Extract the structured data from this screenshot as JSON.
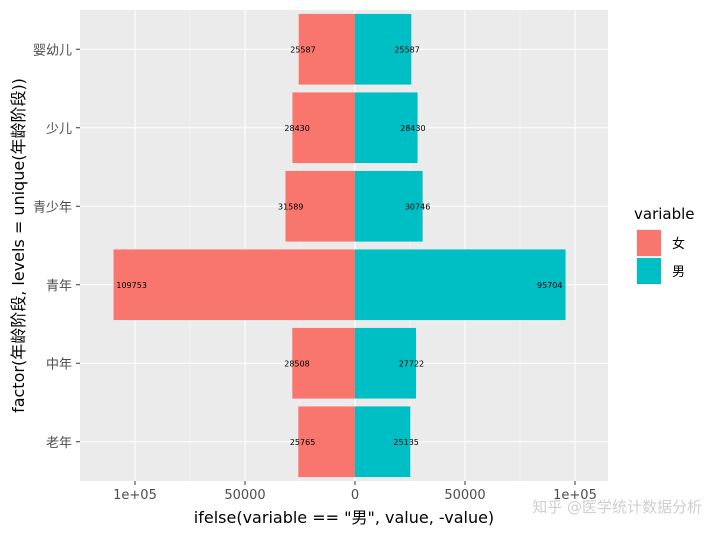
{
  "chart_data": {
    "type": "bar",
    "orientation": "horizontal",
    "categories": [
      "婴幼儿",
      "少儿",
      "青少年",
      "青年",
      "中年",
      "老年"
    ],
    "series": [
      {
        "name": "女",
        "values": [
          25587,
          28430,
          31589,
          109753,
          28508,
          25765
        ],
        "color": "#F8766D",
        "direction": "negative"
      },
      {
        "name": "男",
        "values": [
          25587,
          28430,
          30746,
          95704,
          27722,
          25135
        ],
        "color": "#00BFC4",
        "direction": "positive"
      }
    ],
    "xlabel": "ifelse(variable == \"男\", value, -value)",
    "ylabel": "factor(年龄阶段, levels = unique(年龄阶段))",
    "xlim": [
      -125000,
      115000
    ],
    "xticks": [
      {
        "value": -100000,
        "label": "1e+05"
      },
      {
        "value": -50000,
        "label": "50000"
      },
      {
        "value": 0,
        "label": "0"
      },
      {
        "value": 50000,
        "label": "50000"
      },
      {
        "value": 100000,
        "label": "1e+05"
      }
    ],
    "legend": {
      "title": "variable",
      "position": "right",
      "entries": [
        "女",
        "男"
      ]
    },
    "background": "#EBEBEB",
    "grid": true
  },
  "watermark": "知乎 @医学统计数据分析"
}
